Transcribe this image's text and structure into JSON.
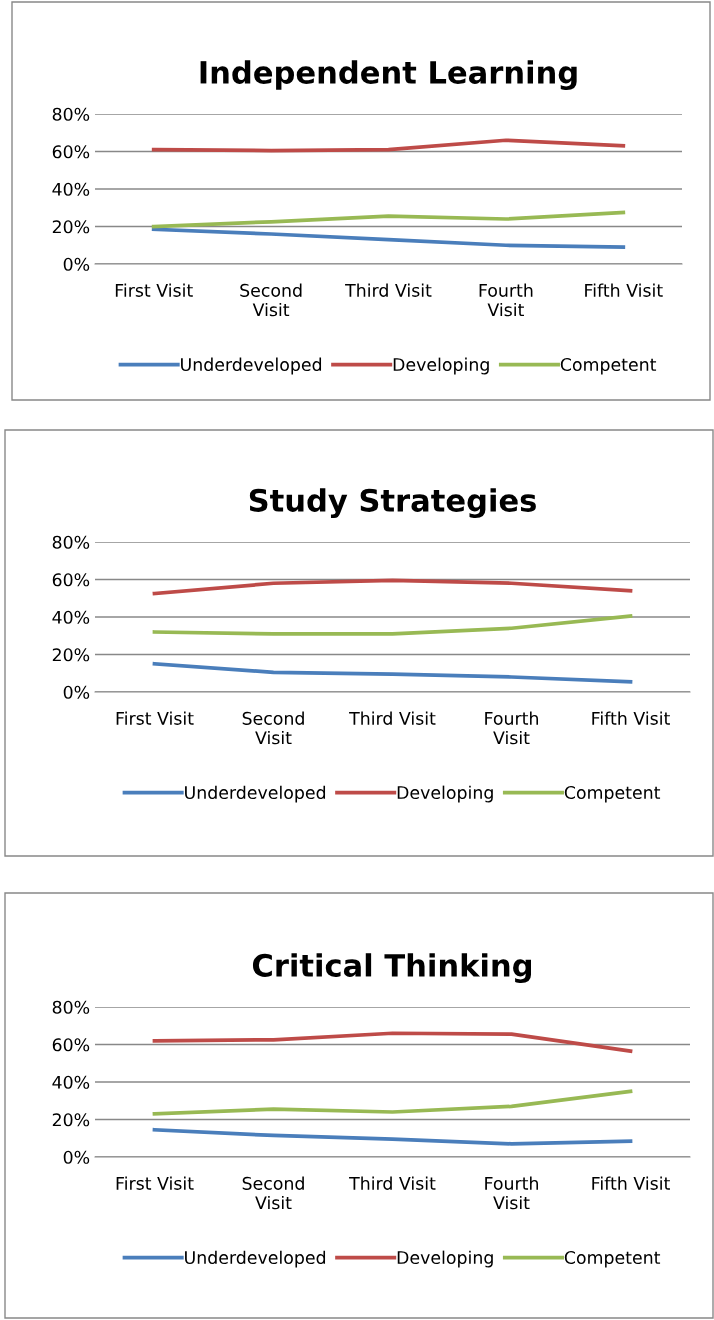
{
  "chart_data": [
    {
      "type": "line",
      "title": "Independent Learning",
      "categories": [
        "First Visit",
        "Second Visit",
        "Third Visit",
        "Fourth Visit",
        "Fifth Visit"
      ],
      "ylim": [
        0,
        80
      ],
      "yticks": [
        {
          "value": 0,
          "label": "0%"
        },
        {
          "value": 20,
          "label": "20%"
        },
        {
          "value": 40,
          "label": "40%"
        },
        {
          "value": 60,
          "label": "60%"
        },
        {
          "value": 80,
          "label": "80%"
        }
      ],
      "grid": "y",
      "legend": "bottom",
      "marker": "none",
      "line_style": "solid",
      "series": [
        {
          "name": "Underdeveloped",
          "color": "#4a7ebb",
          "values": [
            18.5,
            16,
            13,
            10,
            9
          ]
        },
        {
          "name": "Developing",
          "color": "#be4b48",
          "values": [
            61,
            60.5,
            61,
            66,
            63
          ]
        },
        {
          "name": "Competent",
          "color": "#98b954",
          "values": [
            20,
            22.5,
            25.5,
            24,
            27.5
          ]
        }
      ]
    },
    {
      "type": "line",
      "title": "Study Strategies",
      "categories": [
        "First Visit",
        "Second Visit",
        "Third Visit",
        "Fourth Visit",
        "Fifth Visit"
      ],
      "ylim": [
        0,
        80
      ],
      "yticks": [
        {
          "value": 0,
          "label": "0%"
        },
        {
          "value": 20,
          "label": "20%"
        },
        {
          "value": 40,
          "label": "40%"
        },
        {
          "value": 60,
          "label": "60%"
        },
        {
          "value": 80,
          "label": "80%"
        }
      ],
      "grid": "y",
      "legend": "bottom",
      "marker": "none",
      "line_style": "solid",
      "series": [
        {
          "name": "Underdeveloped",
          "color": "#4a7ebb",
          "values": [
            15,
            10.5,
            9.5,
            8,
            5.5
          ]
        },
        {
          "name": "Developing",
          "color": "#be4b48",
          "values": [
            52.5,
            58,
            59.5,
            58,
            54
          ]
        },
        {
          "name": "Competent",
          "color": "#98b954",
          "values": [
            32,
            31,
            31,
            34,
            40.5
          ]
        }
      ]
    },
    {
      "type": "line",
      "title": "Critical Thinking",
      "categories": [
        "First Visit",
        "Second Visit",
        "Third Visit",
        "Fourth Visit",
        "Fifth Visit"
      ],
      "ylim": [
        0,
        80
      ],
      "yticks": [
        {
          "value": 0,
          "label": "0%"
        },
        {
          "value": 20,
          "label": "20%"
        },
        {
          "value": 40,
          "label": "40%"
        },
        {
          "value": 60,
          "label": "60%"
        },
        {
          "value": 80,
          "label": "80%"
        }
      ],
      "grid": "y",
      "legend": "bottom",
      "marker": "none",
      "line_style": "solid",
      "series": [
        {
          "name": "Underdeveloped",
          "color": "#4a7ebb",
          "values": [
            14.5,
            11.5,
            9.5,
            7,
            8.5
          ]
        },
        {
          "name": "Developing",
          "color": "#be4b48",
          "values": [
            62,
            62.5,
            66,
            65.5,
            56.5
          ]
        },
        {
          "name": "Competent",
          "color": "#98b954",
          "values": [
            23,
            25.5,
            24,
            27,
            35
          ]
        }
      ]
    }
  ]
}
